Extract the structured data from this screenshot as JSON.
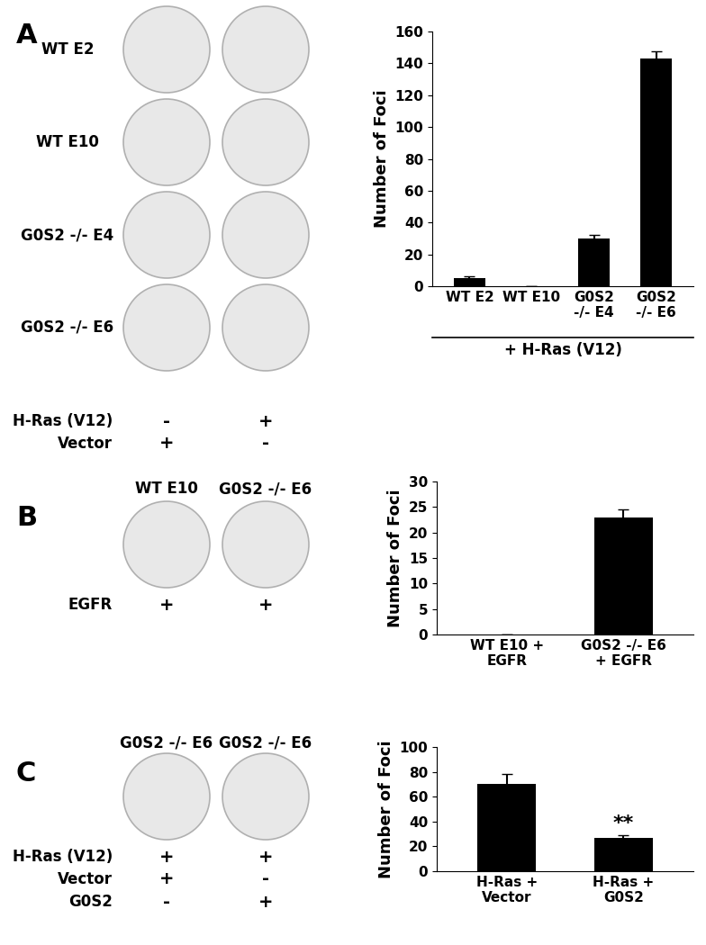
{
  "chart_data": [
    {
      "type": "bar",
      "panel": "A",
      "categories": [
        "WT E2",
        "WT E10",
        "G0S2 -/- E4",
        "G0S2 -/- E6"
      ],
      "values": [
        5,
        0,
        30,
        143
      ],
      "errors": [
        1.5,
        0,
        2,
        4.5
      ],
      "ylabel": "Number of Foci",
      "xlabel": "+ H-Ras (V12)",
      "color": "#000000",
      "ylim": [
        0,
        160
      ],
      "yticks": [
        0,
        20,
        40,
        60,
        80,
        100,
        120,
        140,
        160
      ]
    },
    {
      "type": "bar",
      "panel": "B",
      "categories": [
        "WT E10 + EGFR",
        "G0S2 -/- E6 + EGFR"
      ],
      "values": [
        0,
        23
      ],
      "errors": [
        0,
        1.5
      ],
      "ylabel": "Number of Foci",
      "color": "#000000",
      "ylim": [
        0,
        30
      ],
      "yticks": [
        0,
        5,
        10,
        15,
        20,
        25,
        30
      ]
    },
    {
      "type": "bar",
      "panel": "C",
      "categories": [
        "H-Ras + Vector",
        "H-Ras + G0S2"
      ],
      "values": [
        70,
        27
      ],
      "errors": [
        8,
        2
      ],
      "ylabel": "Number of Foci",
      "color": "#000000",
      "annotations": [
        {
          "text": "**",
          "category": 1
        }
      ],
      "ylim": [
        0,
        100
      ],
      "yticks": [
        0,
        20,
        40,
        60,
        80,
        100
      ]
    }
  ],
  "plates": [
    {
      "panel": "A",
      "rows": [
        "WT E2",
        "WT E10",
        "G0S2 -/- E4",
        "G0S2 -/- E6"
      ],
      "conditions": [
        {
          "name": "H-Ras (V12)",
          "marks": [
            "-",
            "+"
          ]
        },
        {
          "name": "Vector",
          "marks": [
            "+",
            "-"
          ]
        }
      ]
    },
    {
      "panel": "B",
      "columns": [
        "WT E10",
        "G0S2 -/- E6"
      ],
      "conditions": [
        {
          "name": "EGFR",
          "marks": [
            "+",
            "+"
          ]
        }
      ]
    },
    {
      "panel": "C",
      "columns": [
        "G0S2 -/- E6",
        "G0S2 -/- E6"
      ],
      "conditions": [
        {
          "name": "H-Ras (V12)",
          "marks": [
            "+",
            "+"
          ]
        },
        {
          "name": "Vector",
          "marks": [
            "+",
            "-"
          ]
        },
        {
          "name": "G0S2",
          "marks": [
            "-",
            "+"
          ]
        }
      ]
    }
  ]
}
